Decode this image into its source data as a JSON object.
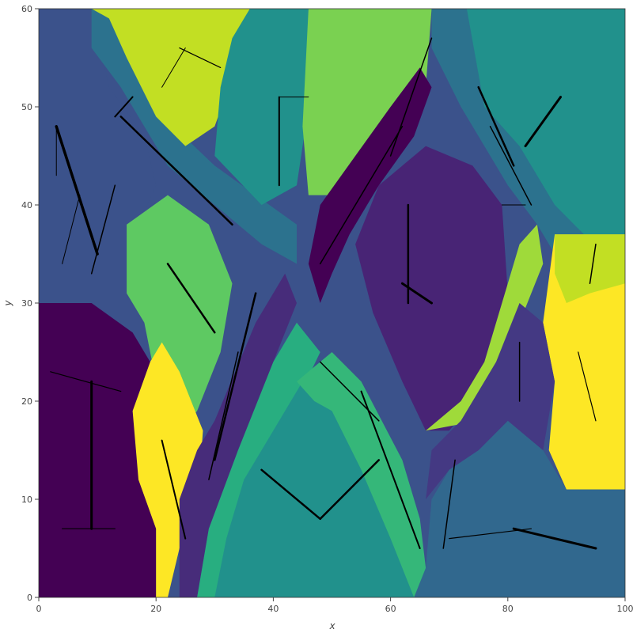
{
  "chart_data": {
    "type": "heatmap",
    "title": "",
    "xlabel": "x",
    "ylabel": "y",
    "xlim": [
      0,
      100
    ],
    "ylim": [
      0,
      60
    ],
    "x_ticks": [
      0,
      20,
      40,
      60,
      80,
      100
    ],
    "y_ticks": [
      0,
      10,
      20,
      30,
      40,
      50,
      60
    ],
    "colormap": "viridis",
    "regions": [
      {
        "color": "#3b528b",
        "polygon": [
          [
            0,
            30
          ],
          [
            0,
            60
          ],
          [
            9,
            60
          ],
          [
            12,
            52
          ],
          [
            18,
            47
          ],
          [
            20,
            42
          ],
          [
            17,
            38
          ],
          [
            15,
            30
          ]
        ]
      },
      {
        "color": "#2c728e",
        "polygon": [
          [
            9,
            60
          ],
          [
            9,
            56
          ],
          [
            14,
            52
          ],
          [
            22,
            44
          ],
          [
            30,
            40
          ],
          [
            38,
            36
          ],
          [
            44,
            34
          ],
          [
            44,
            38
          ],
          [
            37,
            41
          ],
          [
            30,
            44
          ],
          [
            23,
            48
          ],
          [
            17,
            55
          ],
          [
            15,
            60
          ]
        ]
      },
      {
        "color": "#c2df23",
        "polygon": [
          [
            9,
            60
          ],
          [
            36,
            60
          ],
          [
            33,
            53
          ],
          [
            30,
            48
          ],
          [
            25,
            46
          ],
          [
            20,
            49
          ],
          [
            15,
            55
          ],
          [
            12,
            59
          ]
        ]
      },
      {
        "color": "#21918c",
        "polygon": [
          [
            36,
            60
          ],
          [
            46,
            60
          ],
          [
            46,
            50
          ],
          [
            44,
            42
          ],
          [
            38,
            40
          ],
          [
            30,
            45
          ],
          [
            31,
            52
          ],
          [
            33,
            57
          ]
        ]
      },
      {
        "color": "#7ad151",
        "polygon": [
          [
            46,
            60
          ],
          [
            67,
            60
          ],
          [
            66,
            52
          ],
          [
            59,
            45
          ],
          [
            52,
            41
          ],
          [
            46,
            41
          ],
          [
            45,
            48
          ]
        ]
      },
      {
        "color": "#2c728e",
        "polygon": [
          [
            67,
            60
          ],
          [
            67,
            56
          ],
          [
            72,
            50
          ],
          [
            80,
            42
          ],
          [
            85,
            38
          ],
          [
            90,
            33
          ],
          [
            93,
            30
          ],
          [
            97,
            34
          ],
          [
            100,
            36
          ],
          [
            100,
            60
          ]
        ]
      },
      {
        "color": "#21918c",
        "polygon": [
          [
            73,
            60
          ],
          [
            100,
            60
          ],
          [
            100,
            37
          ],
          [
            93,
            37
          ],
          [
            88,
            40
          ],
          [
            82,
            46
          ],
          [
            76,
            50
          ]
        ]
      },
      {
        "color": "#5ec962",
        "polygon": [
          [
            15,
            38
          ],
          [
            22,
            41
          ],
          [
            29,
            38
          ],
          [
            33,
            32
          ],
          [
            31,
            25
          ],
          [
            27,
            19
          ],
          [
            24,
            17
          ],
          [
            20,
            22
          ],
          [
            18,
            28
          ],
          [
            15,
            31
          ]
        ]
      },
      {
        "color": "#440154",
        "polygon": [
          [
            0,
            0
          ],
          [
            0,
            30
          ],
          [
            9,
            30
          ],
          [
            16,
            27
          ],
          [
            21,
            22
          ],
          [
            18,
            17
          ],
          [
            20,
            10
          ],
          [
            20,
            0
          ]
        ]
      },
      {
        "color": "#fde725",
        "polygon": [
          [
            16,
            19
          ],
          [
            19,
            24
          ],
          [
            21,
            26
          ],
          [
            24,
            23
          ],
          [
            28,
            17
          ],
          [
            27,
            9
          ],
          [
            24,
            5
          ],
          [
            22,
            0
          ],
          [
            20,
            0
          ],
          [
            20,
            7
          ],
          [
            17,
            12
          ]
        ]
      },
      {
        "color": "#472c7a",
        "polygon": [
          [
            24,
            0
          ],
          [
            24,
            10
          ],
          [
            27,
            15
          ],
          [
            30,
            18
          ],
          [
            37,
            28
          ],
          [
            42,
            33
          ],
          [
            44,
            30
          ],
          [
            40,
            24
          ],
          [
            34,
            15
          ],
          [
            29,
            7
          ],
          [
            27,
            0
          ]
        ]
      },
      {
        "color": "#28ae80",
        "polygon": [
          [
            27,
            0
          ],
          [
            29,
            7
          ],
          [
            34,
            15
          ],
          [
            40,
            24
          ],
          [
            44,
            28
          ],
          [
            48,
            25
          ],
          [
            44,
            20
          ],
          [
            39,
            12
          ],
          [
            33,
            5
          ],
          [
            30,
            0
          ]
        ]
      },
      {
        "color": "#21918c",
        "polygon": [
          [
            30,
            0
          ],
          [
            64,
            0
          ],
          [
            65,
            6
          ],
          [
            60,
            12
          ],
          [
            55,
            18
          ],
          [
            50,
            22
          ],
          [
            45,
            22
          ],
          [
            40,
            17
          ],
          [
            35,
            12
          ],
          [
            32,
            6
          ]
        ]
      },
      {
        "color": "#35b779",
        "polygon": [
          [
            44,
            22
          ],
          [
            50,
            25
          ],
          [
            55,
            22
          ],
          [
            62,
            14
          ],
          [
            65,
            8
          ],
          [
            66,
            3
          ],
          [
            66,
            0
          ],
          [
            64,
            0
          ],
          [
            60,
            6
          ],
          [
            55,
            13
          ],
          [
            50,
            19
          ],
          [
            47,
            20
          ]
        ]
      },
      {
        "color": "#440154",
        "polygon": [
          [
            46,
            34
          ],
          [
            48,
            40
          ],
          [
            54,
            45
          ],
          [
            60,
            50
          ],
          [
            65,
            54
          ],
          [
            67,
            52
          ],
          [
            64,
            47
          ],
          [
            58,
            42
          ],
          [
            53,
            37
          ],
          [
            50,
            33
          ],
          [
            48,
            30
          ]
        ]
      },
      {
        "color": "#482475",
        "polygon": [
          [
            54,
            36
          ],
          [
            58,
            42
          ],
          [
            66,
            46
          ],
          [
            74,
            44
          ],
          [
            79,
            40
          ],
          [
            80,
            31
          ],
          [
            79,
            25
          ],
          [
            74,
            20
          ],
          [
            70,
            17
          ],
          [
            66,
            17
          ],
          [
            62,
            22
          ],
          [
            57,
            29
          ]
        ]
      },
      {
        "color": "#9fda3a",
        "polygon": [
          [
            66,
            17
          ],
          [
            72,
            20
          ],
          [
            76,
            24
          ],
          [
            80,
            32
          ],
          [
            82,
            36
          ],
          [
            85,
            38
          ],
          [
            86,
            34
          ],
          [
            82,
            28
          ],
          [
            79,
            22
          ],
          [
            75,
            18
          ]
        ]
      },
      {
        "color": "#fde725",
        "polygon": [
          [
            88,
            37
          ],
          [
            100,
            37
          ],
          [
            100,
            11
          ],
          [
            90,
            11
          ],
          [
            87,
            15
          ],
          [
            88,
            22
          ],
          [
            86,
            28
          ]
        ]
      },
      {
        "color": "#c2df23",
        "polygon": [
          [
            88,
            37
          ],
          [
            100,
            37
          ],
          [
            100,
            32
          ],
          [
            94,
            31
          ],
          [
            90,
            30
          ],
          [
            88,
            33
          ]
        ]
      },
      {
        "color": "#31688e",
        "polygon": [
          [
            64,
            0
          ],
          [
            100,
            0
          ],
          [
            100,
            11
          ],
          [
            90,
            11
          ],
          [
            86,
            15
          ],
          [
            80,
            18
          ],
          [
            75,
            15
          ],
          [
            70,
            13
          ],
          [
            67,
            10
          ],
          [
            66,
            3
          ]
        ]
      },
      {
        "color": "#443983",
        "polygon": [
          [
            66,
            10
          ],
          [
            70,
            13
          ],
          [
            75,
            15
          ],
          [
            80,
            18
          ],
          [
            86,
            15
          ],
          [
            88,
            22
          ],
          [
            86,
            28
          ],
          [
            82,
            30
          ],
          [
            78,
            24
          ],
          [
            72,
            18
          ],
          [
            67,
            15
          ]
        ]
      }
    ],
    "fibers": [
      {
        "x1": 3,
        "y1": 48,
        "x2": 10,
        "y2": 35,
        "w": 3.5
      },
      {
        "x1": 13,
        "y1": 49,
        "x2": 16,
        "y2": 51,
        "w": 2
      },
      {
        "x1": 14,
        "y1": 49,
        "x2": 33,
        "y2": 38,
        "w": 2.5
      },
      {
        "x1": 9,
        "y1": 33,
        "x2": 13,
        "y2": 42,
        "w": 1.5
      },
      {
        "x1": 3,
        "y1": 43,
        "x2": 3,
        "y2": 48,
        "w": 1
      },
      {
        "x1": 4,
        "y1": 34,
        "x2": 7,
        "y2": 41,
        "w": 1
      },
      {
        "x1": 24,
        "y1": 56,
        "x2": 31,
        "y2": 54,
        "w": 1.2
      },
      {
        "x1": 21,
        "y1": 52,
        "x2": 25,
        "y2": 56,
        "w": 1
      },
      {
        "x1": 41,
        "y1": 42,
        "x2": 41,
        "y2": 51,
        "w": 2
      },
      {
        "x1": 41,
        "y1": 51,
        "x2": 46,
        "y2": 51,
        "w": 1
      },
      {
        "x1": 60,
        "y1": 45,
        "x2": 67,
        "y2": 57,
        "w": 1.5
      },
      {
        "x1": 48,
        "y1": 34,
        "x2": 62,
        "y2": 48,
        "w": 1.5
      },
      {
        "x1": 75,
        "y1": 52,
        "x2": 81,
        "y2": 44,
        "w": 2.5
      },
      {
        "x1": 83,
        "y1": 46,
        "x2": 89,
        "y2": 51,
        "w": 3
      },
      {
        "x1": 77,
        "y1": 48,
        "x2": 84,
        "y2": 40,
        "w": 1.5
      },
      {
        "x1": 62,
        "y1": 32,
        "x2": 67,
        "y2": 30,
        "w": 3
      },
      {
        "x1": 63,
        "y1": 40,
        "x2": 63,
        "y2": 30,
        "w": 2.5
      },
      {
        "x1": 22,
        "y1": 34,
        "x2": 30,
        "y2": 27,
        "w": 2.5
      },
      {
        "x1": 30,
        "y1": 14,
        "x2": 37,
        "y2": 31,
        "w": 2.5
      },
      {
        "x1": 29,
        "y1": 12,
        "x2": 34,
        "y2": 25,
        "w": 1.5
      },
      {
        "x1": 9,
        "y1": 7,
        "x2": 9,
        "y2": 22,
        "w": 3
      },
      {
        "x1": 4,
        "y1": 7,
        "x2": 13,
        "y2": 7,
        "w": 1.2
      },
      {
        "x1": 2,
        "y1": 23,
        "x2": 14,
        "y2": 21,
        "w": 1.2
      },
      {
        "x1": 21,
        "y1": 16,
        "x2": 25,
        "y2": 6,
        "w": 2
      },
      {
        "x1": 38,
        "y1": 13,
        "x2": 48,
        "y2": 8,
        "w": 2.5
      },
      {
        "x1": 48,
        "y1": 8,
        "x2": 58,
        "y2": 14,
        "w": 2.5
      },
      {
        "x1": 55,
        "y1": 21,
        "x2": 65,
        "y2": 5,
        "w": 2
      },
      {
        "x1": 48,
        "y1": 24,
        "x2": 58,
        "y2": 18,
        "w": 1.5
      },
      {
        "x1": 70,
        "y1": 6,
        "x2": 84,
        "y2": 7,
        "w": 1.2
      },
      {
        "x1": 81,
        "y1": 7,
        "x2": 95,
        "y2": 5,
        "w": 3
      },
      {
        "x1": 69,
        "y1": 5,
        "x2": 71,
        "y2": 14,
        "w": 1.5
      },
      {
        "x1": 82,
        "y1": 20,
        "x2": 82,
        "y2": 26,
        "w": 1.5
      },
      {
        "x1": 94,
        "y1": 32,
        "x2": 95,
        "y2": 36,
        "w": 1.5
      },
      {
        "x1": 92,
        "y1": 25,
        "x2": 95,
        "y2": 18,
        "w": 1.2
      },
      {
        "x1": 79,
        "y1": 40,
        "x2": 83,
        "y2": 40,
        "w": 1
      }
    ]
  }
}
